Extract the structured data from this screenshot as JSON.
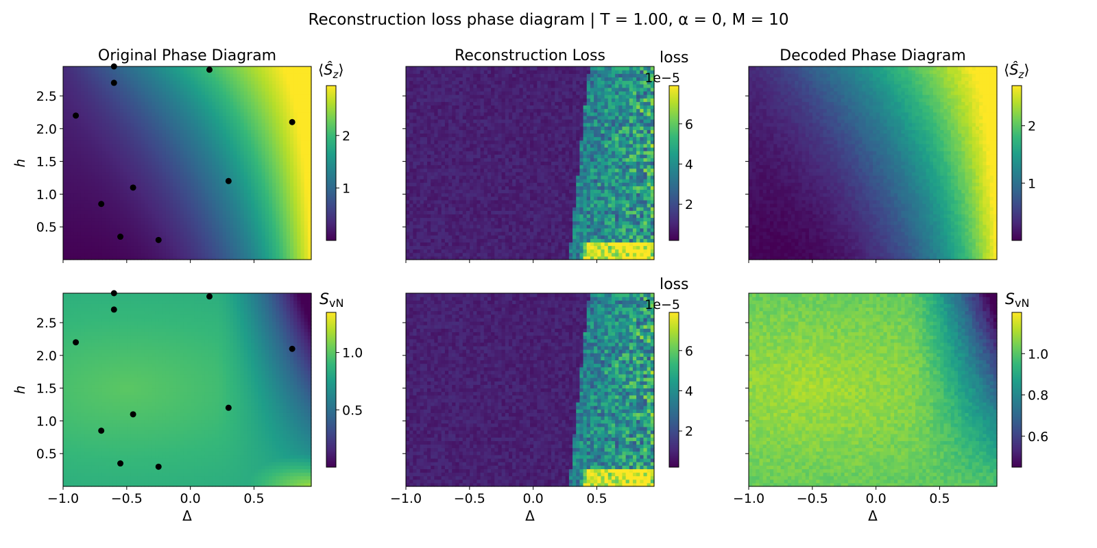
{
  "suptitle": "Reconstruction loss phase diagram | T = 1.00, α = 0, M = 10",
  "colormap": [
    "#440154",
    "#482878",
    "#3e4989",
    "#31688e",
    "#26828e",
    "#1f9e89",
    "#35b779",
    "#6ece58",
    "#b5de2b",
    "#fde725"
  ],
  "scatter_color": "#000000",
  "chart_data": [
    {
      "id": "orig-sz",
      "type": "heatmap",
      "title": "Original Phase Diagram",
      "xlabel": "",
      "ylabel": "h",
      "xlim": [
        -1.0,
        0.95
      ],
      "ylim": [
        0.0,
        2.95
      ],
      "xticks": [
        "",
        "",
        "",
        ""
      ],
      "yticks": [
        "0.5",
        "1.0",
        "1.5",
        "2.0",
        "2.5"
      ],
      "field": "Sz",
      "clim": [
        0.0,
        2.95
      ],
      "colorbar": {
        "label": "⟨Ŝz⟩",
        "ticks": [
          "1",
          "2"
        ],
        "tick_values": [
          1,
          2
        ],
        "offset": ""
      },
      "points": [
        {
          "x": -0.9,
          "y": 2.2
        },
        {
          "x": -0.6,
          "y": 2.95
        },
        {
          "x": -0.6,
          "y": 2.7
        },
        {
          "x": 0.15,
          "y": 2.9
        },
        {
          "x": 0.8,
          "y": 2.1
        },
        {
          "x": 0.3,
          "y": 1.2
        },
        {
          "x": -0.45,
          "y": 1.1
        },
        {
          "x": -0.7,
          "y": 0.85
        },
        {
          "x": -0.55,
          "y": 0.35
        },
        {
          "x": -0.25,
          "y": 0.3
        }
      ]
    },
    {
      "id": "loss-sz",
      "type": "heatmap",
      "title": "Reconstruction Loss",
      "xlabel": "",
      "ylabel": "",
      "xlim": [
        -1.0,
        0.95
      ],
      "ylim": [
        0.0,
        2.95
      ],
      "xticks": [
        "",
        "",
        "",
        ""
      ],
      "yticks": [
        "",
        "",
        "",
        "",
        ""
      ],
      "field": "loss",
      "clim": [
        0.2,
        7.9
      ],
      "colorbar": {
        "label": "loss",
        "ticks": [
          "2",
          "4",
          "6"
        ],
        "tick_values": [
          2,
          4,
          6
        ],
        "offset": "1e−5"
      },
      "points": []
    },
    {
      "id": "dec-sz",
      "type": "heatmap",
      "title": "Decoded Phase Diagram",
      "xlabel": "",
      "ylabel": "",
      "xlim": [
        -1.0,
        0.95
      ],
      "ylim": [
        0.0,
        2.95
      ],
      "xticks": [
        "",
        "",
        "",
        ""
      ],
      "yticks": [
        "",
        "",
        "",
        "",
        ""
      ],
      "field": "Sz_dec",
      "clim": [
        0.0,
        2.7
      ],
      "colorbar": {
        "label": "⟨Ŝz⟩",
        "ticks": [
          "1",
          "2"
        ],
        "tick_values": [
          1,
          2
        ],
        "offset": ""
      },
      "points": []
    },
    {
      "id": "orig-svn",
      "type": "heatmap",
      "title": "",
      "xlabel": "Δ",
      "ylabel": "h",
      "xlim": [
        -1.0,
        0.95
      ],
      "ylim": [
        0.0,
        2.95
      ],
      "xticks": [
        "−1.0",
        "−0.5",
        "0.0",
        "0.5"
      ],
      "yticks": [
        "0.5",
        "1.0",
        "1.5",
        "2.0",
        "2.5"
      ],
      "field": "Svn",
      "clim": [
        0.0,
        1.35
      ],
      "colorbar": {
        "label": "SvN",
        "ticks": [
          "0.5",
          "1.0"
        ],
        "tick_values": [
          0.5,
          1.0
        ],
        "offset": ""
      },
      "points": [
        {
          "x": -0.9,
          "y": 2.2
        },
        {
          "x": -0.6,
          "y": 2.95
        },
        {
          "x": -0.6,
          "y": 2.7
        },
        {
          "x": 0.15,
          "y": 2.9
        },
        {
          "x": 0.8,
          "y": 2.1
        },
        {
          "x": 0.3,
          "y": 1.2
        },
        {
          "x": -0.45,
          "y": 1.1
        },
        {
          "x": -0.7,
          "y": 0.85
        },
        {
          "x": -0.55,
          "y": 0.35
        },
        {
          "x": -0.25,
          "y": 0.3
        }
      ]
    },
    {
      "id": "loss-svn",
      "type": "heatmap",
      "title": "",
      "xlabel": "Δ",
      "ylabel": "",
      "xlim": [
        -1.0,
        0.95
      ],
      "ylim": [
        0.0,
        2.95
      ],
      "xticks": [
        "−1.0",
        "−0.5",
        "0.0",
        "0.5"
      ],
      "yticks": [
        "",
        "",
        "",
        "",
        ""
      ],
      "field": "loss",
      "clim": [
        0.2,
        7.9
      ],
      "colorbar": {
        "label": "loss",
        "ticks": [
          "2",
          "4",
          "6"
        ],
        "tick_values": [
          2,
          4,
          6
        ],
        "offset": "1e−5"
      },
      "points": []
    },
    {
      "id": "dec-svn",
      "type": "heatmap",
      "title": "",
      "xlabel": "Δ",
      "ylabel": "",
      "xlim": [
        -1.0,
        0.95
      ],
      "ylim": [
        0.0,
        2.95
      ],
      "xticks": [
        "−1.0",
        "−0.5",
        "0.0",
        "0.5"
      ],
      "yticks": [
        "",
        "",
        "",
        "",
        ""
      ],
      "field": "Svn_dec",
      "clim": [
        0.45,
        1.2
      ],
      "colorbar": {
        "label": "SvN",
        "ticks": [
          "0.6",
          "0.8",
          "1.0"
        ],
        "tick_values": [
          0.6,
          0.8,
          1.0
        ],
        "offset": ""
      },
      "points": []
    }
  ]
}
